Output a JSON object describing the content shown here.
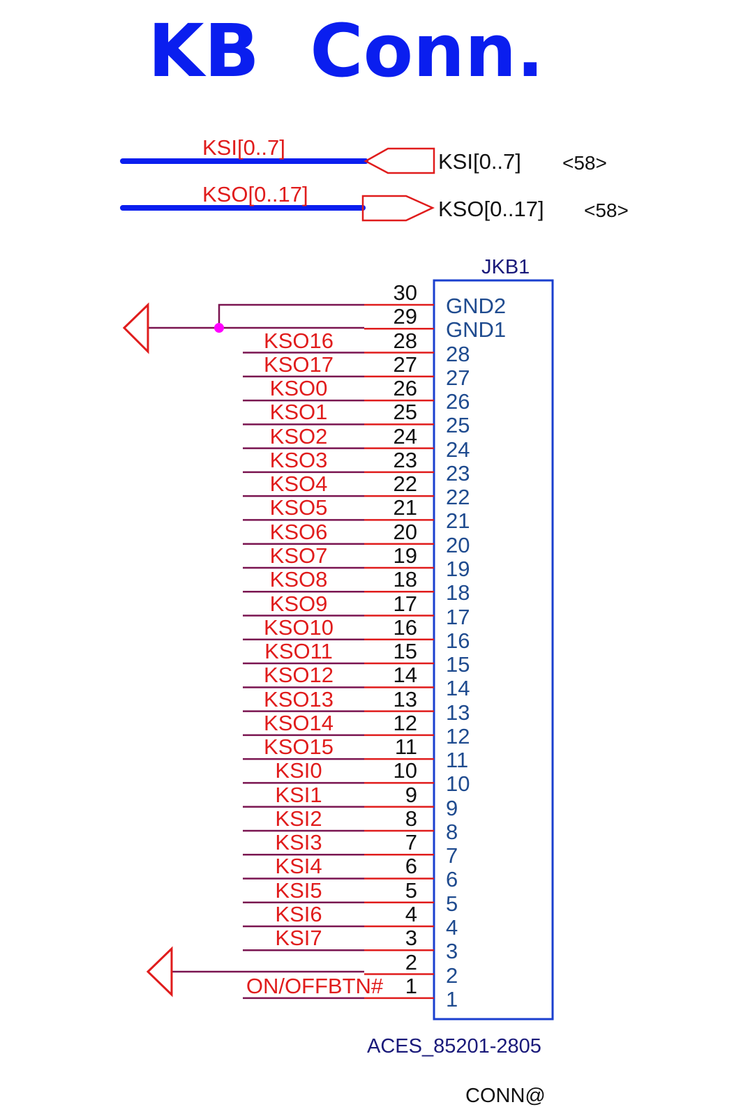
{
  "title": "KB  Conn.",
  "buses": [
    {
      "wire_label": "KSI[0..7]",
      "port_label": "KSI[0..7]",
      "ref": "<58>",
      "direction": "input"
    },
    {
      "wire_label": "KSO[0..17]",
      "port_label": "KSO[0..17]",
      "ref": "<58>",
      "direction": "output"
    }
  ],
  "connector": {
    "refdes": "JKB1",
    "part": "ACES_85201-2805",
    "option": "CONN@",
    "pins": [
      {
        "num": "30",
        "inner": "GND2",
        "net": ""
      },
      {
        "num": "29",
        "inner": "GND1",
        "net": ""
      },
      {
        "num": "28",
        "inner": "28",
        "net": "KSO16"
      },
      {
        "num": "27",
        "inner": "27",
        "net": "KSO17"
      },
      {
        "num": "26",
        "inner": "26",
        "net": "KSO0"
      },
      {
        "num": "25",
        "inner": "25",
        "net": "KSO1"
      },
      {
        "num": "24",
        "inner": "24",
        "net": "KSO2"
      },
      {
        "num": "23",
        "inner": "23",
        "net": "KSO3"
      },
      {
        "num": "22",
        "inner": "22",
        "net": "KSO4"
      },
      {
        "num": "21",
        "inner": "21",
        "net": "KSO5"
      },
      {
        "num": "20",
        "inner": "20",
        "net": "KSO6"
      },
      {
        "num": "19",
        "inner": "19",
        "net": "KSO7"
      },
      {
        "num": "18",
        "inner": "18",
        "net": "KSO8"
      },
      {
        "num": "17",
        "inner": "17",
        "net": "KSO9"
      },
      {
        "num": "16",
        "inner": "16",
        "net": "KSO10"
      },
      {
        "num": "15",
        "inner": "15",
        "net": "KSO11"
      },
      {
        "num": "14",
        "inner": "14",
        "net": "KSO12"
      },
      {
        "num": "13",
        "inner": "13",
        "net": "KSO13"
      },
      {
        "num": "12",
        "inner": "12",
        "net": "KSO14"
      },
      {
        "num": "11",
        "inner": "11",
        "net": "KSO15"
      },
      {
        "num": "10",
        "inner": "10",
        "net": "KSI0"
      },
      {
        "num": "9",
        "inner": "9",
        "net": "KSI1"
      },
      {
        "num": "8",
        "inner": "8",
        "net": "KSI2"
      },
      {
        "num": "7",
        "inner": "7",
        "net": "KSI3"
      },
      {
        "num": "6",
        "inner": "6",
        "net": "KSI4"
      },
      {
        "num": "5",
        "inner": "5",
        "net": "KSI5"
      },
      {
        "num": "4",
        "inner": "4",
        "net": "KSI6"
      },
      {
        "num": "3",
        "inner": "3",
        "net": "KSI7"
      },
      {
        "num": "2",
        "inner": "2",
        "net": ""
      },
      {
        "num": "1",
        "inner": "1",
        "net": "ON/OFFBTN#"
      }
    ]
  },
  "colors": {
    "bus": "#0a1eef",
    "net_label": "#e01c1c",
    "wire": "#7a1450",
    "pin_line": "#e01c1c",
    "body": "#1a3fcf",
    "junction": "#ff00ff",
    "ground": "#e01c1c"
  }
}
